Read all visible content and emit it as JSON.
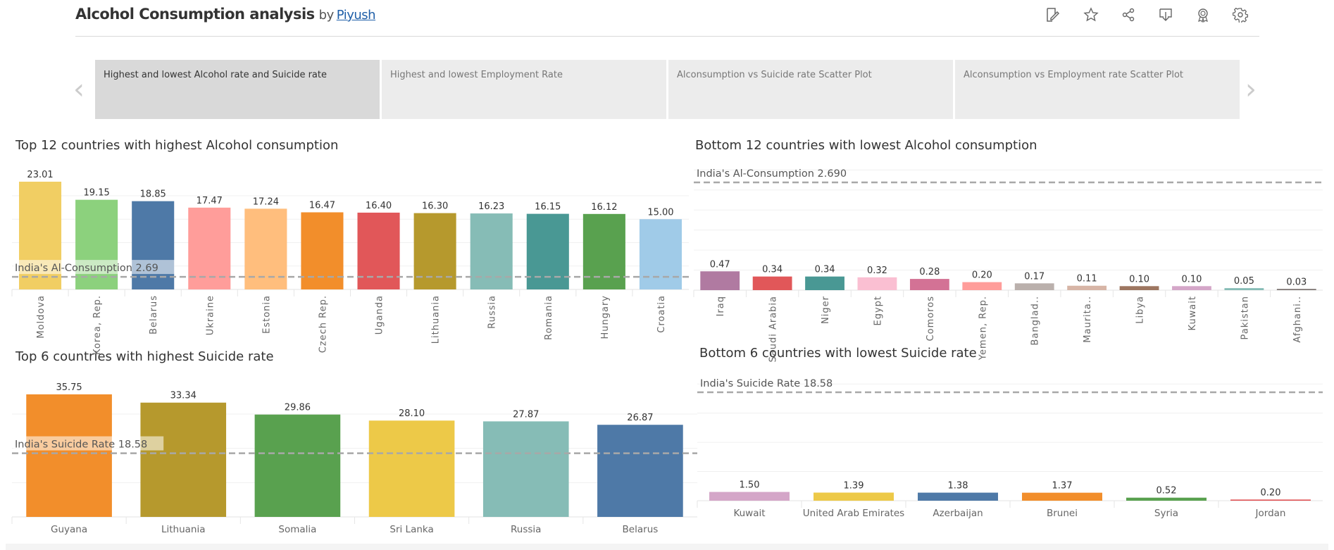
{
  "header": {
    "title": "Alcohol Consumption analysis",
    "by": "by",
    "author": "Piyush",
    "toolbar_icons": [
      "edit-icon",
      "star-icon",
      "share-icon",
      "download-icon",
      "badge-icon",
      "gear-icon"
    ]
  },
  "tabs": [
    {
      "label": "Highest and lowest Alcohol rate and Suicide rate",
      "active": true
    },
    {
      "label": "Highest and lowest Employment Rate",
      "active": false
    },
    {
      "label": "Alconsumption vs Suicide rate Scatter Plot",
      "active": false
    },
    {
      "label": "Alconsumption vs Employment rate Scatter Plot",
      "active": false
    }
  ],
  "nav": {
    "prev": "‹",
    "next": "›"
  },
  "chart_data": [
    {
      "type": "bar",
      "title": "Top 12 countries with highest Alcohol consumption",
      "categories": [
        "Moldova",
        "Korea, Rep.",
        "Belarus",
        "Ukraine",
        "Estonia",
        "Czech Rep.",
        "Uganda",
        "Lithuania",
        "Russia",
        "Romania",
        "Hungary",
        "Croatia"
      ],
      "values": [
        23.01,
        19.15,
        18.85,
        17.47,
        17.24,
        16.47,
        16.4,
        16.3,
        16.23,
        16.15,
        16.12,
        15.0
      ],
      "labels": [
        "23.01",
        "19.15",
        "18.85",
        "17.47",
        "17.24",
        "16.47",
        "16.40",
        "16.30",
        "16.23",
        "16.15",
        "16.12",
        "15.00"
      ],
      "colors": [
        "#f1ce63",
        "#8cd17d",
        "#4e79a7",
        "#ff9d9a",
        "#ffbe7d",
        "#f28e2b",
        "#e15759",
        "#b6992d",
        "#86bcb6",
        "#499894",
        "#59a14f",
        "#a0cbe8"
      ],
      "reference_line": {
        "label": "India's Al-Consumption  2.69",
        "value": 2.69
      },
      "ylim": [
        0,
        23.01
      ],
      "label_orientation": "vertical"
    },
    {
      "type": "bar",
      "title": "Bottom 12 countries with lowest Alcohol consumption",
      "categories": [
        "Iraq",
        "Saudi Arabia",
        "Niger",
        "Egypt",
        "Comoros",
        "Yemen, Rep.",
        "Banglad..",
        "Maurita..",
        "Libya",
        "Kuwait",
        "Pakistan",
        "Afghani.."
      ],
      "values": [
        0.47,
        0.34,
        0.34,
        0.32,
        0.28,
        0.2,
        0.17,
        0.11,
        0.1,
        0.1,
        0.05,
        0.03
      ],
      "labels": [
        "0.47",
        "0.34",
        "0.34",
        "0.32",
        "0.28",
        "0.20",
        "0.17",
        "0.11",
        "0.10",
        "0.10",
        "0.05",
        "0.03"
      ],
      "colors": [
        "#b07aa1",
        "#e15759",
        "#499894",
        "#fabfd2",
        "#d37295",
        "#ff9d9a",
        "#bab0ac",
        "#d7b5a6",
        "#9d7660",
        "#d4a6c8",
        "#86bcb6",
        "#79706e"
      ],
      "reference_line": {
        "label": "India's Al-Consumption  2.690",
        "value": 2.69
      },
      "ylim": [
        0,
        2.69
      ],
      "label_orientation": "vertical"
    },
    {
      "type": "bar",
      "title": "Top 6 countries with highest Suicide rate",
      "categories": [
        "Guyana",
        "Lithuania",
        "Somalia",
        "Sri Lanka",
        "Russia",
        "Belarus"
      ],
      "values": [
        35.75,
        33.34,
        29.86,
        28.1,
        27.87,
        26.87
      ],
      "labels": [
        "35.75",
        "33.34",
        "29.86",
        "28.10",
        "27.87",
        "26.87"
      ],
      "colors": [
        "#f28e2b",
        "#b6992d",
        "#59a14f",
        "#edc948",
        "#86bcb6",
        "#4e79a7"
      ],
      "reference_line": {
        "label": "India's Suicide Rate 18.58",
        "value": 18.58
      },
      "ylim": [
        0,
        35.75
      ],
      "label_orientation": "horizontal"
    },
    {
      "type": "bar",
      "title": "Bottom 6 countries with lowest Suicide rate",
      "categories": [
        "Kuwait",
        "United Arab Emirates",
        "Azerbaijan",
        "Brunei",
        "Syria",
        "Jordan"
      ],
      "values": [
        1.5,
        1.39,
        1.38,
        1.37,
        0.52,
        0.2
      ],
      "labels": [
        "1.50",
        "1.39",
        "1.38",
        "1.37",
        "0.52",
        "0.20"
      ],
      "colors": [
        "#d4a6c8",
        "#edc948",
        "#4e79a7",
        "#f28e2b",
        "#59a14f",
        "#e15759"
      ],
      "reference_line": {
        "label": "India's Suicide Rate 18.58",
        "value": 18.58
      },
      "ylim": [
        0,
        18.58
      ],
      "label_orientation": "horizontal"
    }
  ]
}
